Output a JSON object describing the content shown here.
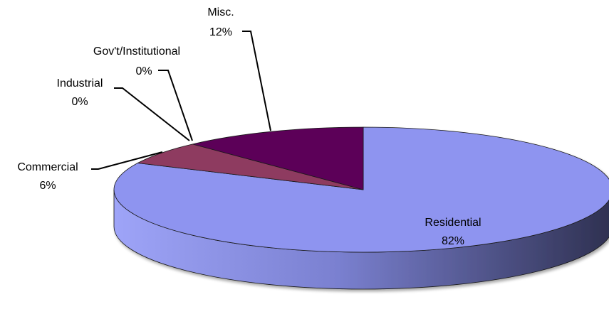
{
  "chart_data": {
    "type": "pie",
    "style": "3d",
    "legend": "none",
    "slices": [
      {
        "label": "Residential",
        "value": 82,
        "value_label": "82%",
        "color": "#8E94F0",
        "dark": "#3C3F63"
      },
      {
        "label": "Commercial",
        "value": 6,
        "value_label": "6%",
        "color": "#8E3A60",
        "dark": "#5A2440"
      },
      {
        "label": "Industrial",
        "value": 0,
        "value_label": "0%",
        "color": "#A06080",
        "dark": "#60304A"
      },
      {
        "label": "Gov't/Institutional",
        "value": 0,
        "value_label": "0%",
        "color": "#7A3070",
        "dark": "#4A1C44"
      },
      {
        "label": "Misc.",
        "value": 12,
        "value_label": "12%",
        "color": "#5C0058",
        "dark": "#3A0038"
      }
    ]
  }
}
